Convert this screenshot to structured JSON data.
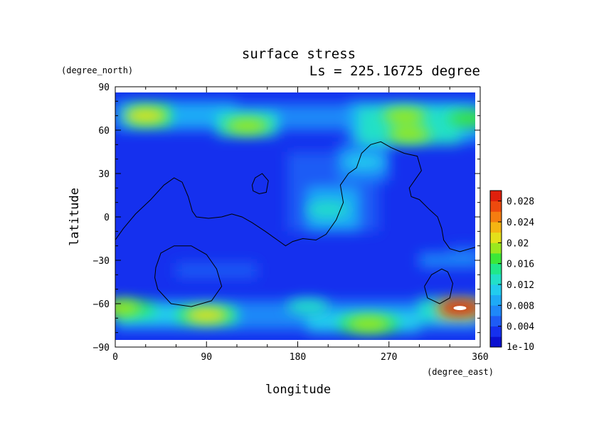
{
  "chart_data": {
    "type": "heatmap",
    "title": "surface stress",
    "subtitle": "Ls = 225.16725 degree",
    "xlabel": "longitude",
    "ylabel": "latitude",
    "x_unit": "(degree_east)",
    "y_unit": "(degree_north)",
    "xlim": [
      0,
      360
    ],
    "ylim": [
      -90,
      90
    ],
    "x_ticks": [
      "0",
      "90",
      "180",
      "270",
      "360"
    ],
    "y_ticks": [
      "90",
      "60",
      "30",
      "0",
      "−30",
      "−60",
      "−90"
    ],
    "colorbar": {
      "min_label": "1e-10",
      "ticks": [
        "0.004",
        "0.008",
        "0.012",
        "0.016",
        "0.02",
        "0.024",
        "0.028"
      ],
      "tick_values": [
        0.004,
        0.008,
        0.012,
        0.016,
        0.02,
        0.024,
        0.028
      ],
      "vmin": 0,
      "vmax": 0.03,
      "colors": [
        "#0a10d0",
        "#1530ee",
        "#1e5cf5",
        "#1f88f8",
        "#1eaaf6",
        "#22ccee",
        "#22e0c8",
        "#20e88a",
        "#3be838",
        "#9ae81e",
        "#e4e01a",
        "#f5b512",
        "#f57d10",
        "#ee4a0e",
        "#e0200c"
      ]
    },
    "stress_maxima": [
      {
        "lon": 30,
        "lat": 70,
        "value": 0.02
      },
      {
        "lon": 130,
        "lat": 63,
        "value": 0.018
      },
      {
        "lon": 285,
        "lat": 70,
        "value": 0.019
      },
      {
        "lon": 290,
        "lat": 57,
        "value": 0.019
      },
      {
        "lon": 350,
        "lat": 68,
        "value": 0.017
      },
      {
        "lon": 5,
        "lat": -63,
        "value": 0.019
      },
      {
        "lon": 90,
        "lat": -68,
        "value": 0.02
      },
      {
        "lon": 250,
        "lat": -74,
        "value": 0.019
      },
      {
        "lon": 340,
        "lat": -63,
        "value": 0.028
      },
      {
        "lon": 190,
        "lat": -62,
        "value": 0.013
      },
      {
        "lon": 210,
        "lat": 5,
        "value": 0.012
      },
      {
        "lon": 245,
        "lat": 38,
        "value": 0.01
      }
    ],
    "overlay_contours": "black topography contour lines"
  }
}
